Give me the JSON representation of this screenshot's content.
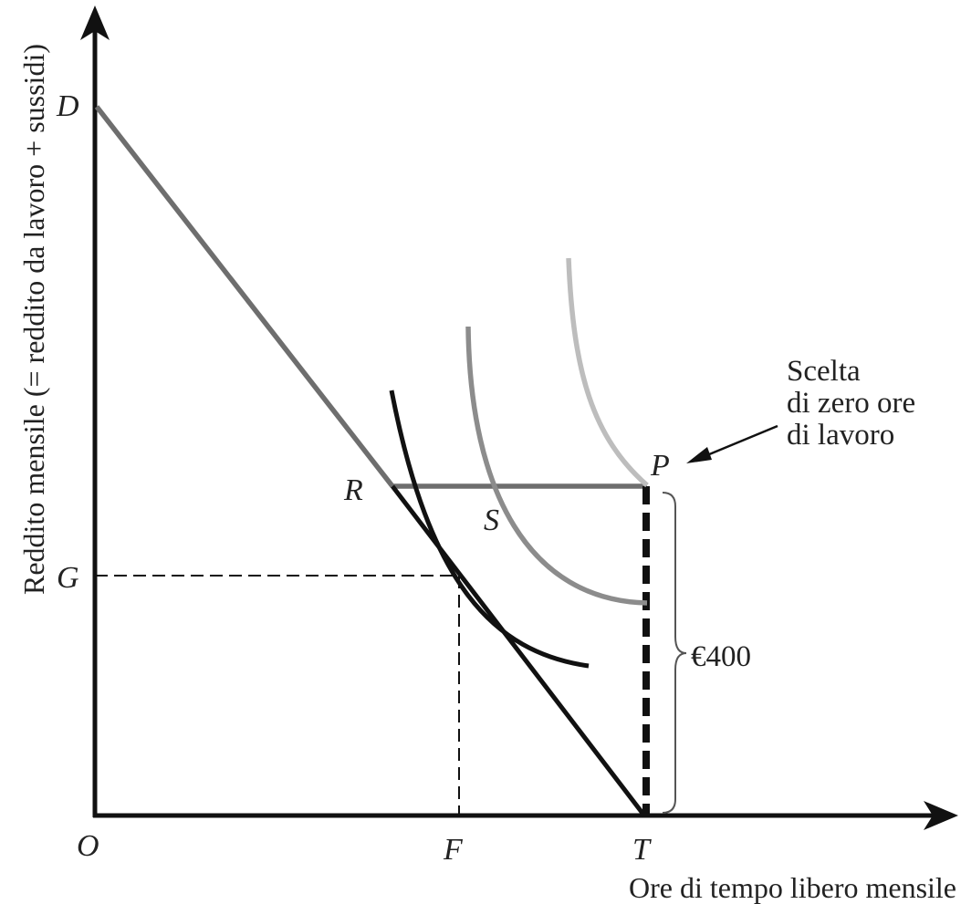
{
  "axes": {
    "x_label": "Ore di tempo libero mensile",
    "y_label": "Reddito mensile (= reddito da lavoro + sussidi)",
    "origin_label": "O"
  },
  "points": {
    "D": "D",
    "G": "G",
    "R": "R",
    "S": "S",
    "P": "P",
    "F": "F",
    "T": "T"
  },
  "annotation": {
    "line1": "Scelta",
    "line2": "di zero ore",
    "line3": "di lavoro"
  },
  "brace_label": "€400",
  "colors": {
    "axis": "#111111",
    "budget_upper": "#6e6e6e",
    "budget_lower": "#111111",
    "curve_low": "#111111",
    "curve_mid": "#8c8c8c",
    "curve_high": "#bdbdbd",
    "guide": "#111111"
  }
}
